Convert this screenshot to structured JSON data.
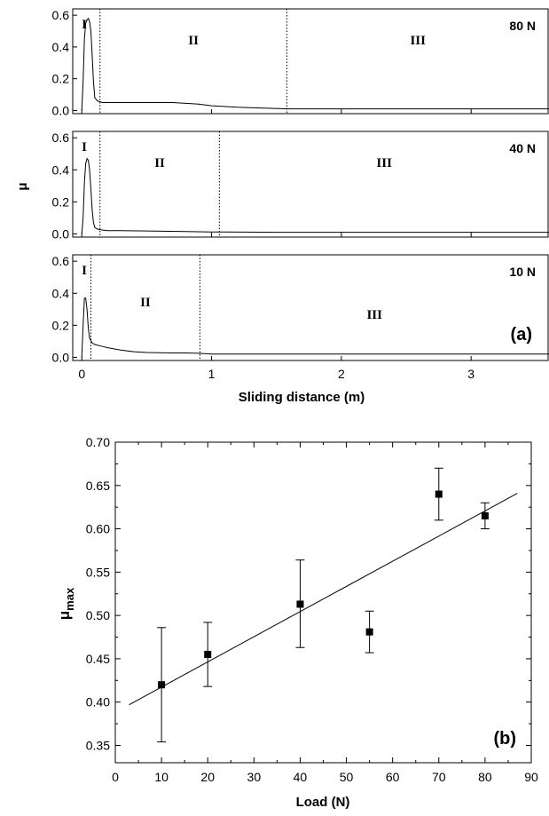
{
  "chart_data": [
    {
      "type": "line",
      "panel_label": "(a)",
      "xlabel": "Sliding distance (m)",
      "ylabel": "μ",
      "xlim": [
        -0.07,
        3.6
      ],
      "x_ticks": [
        "0",
        "1",
        "2",
        "3"
      ],
      "y_ticks": [
        "0.0",
        "0.2",
        "0.4",
        "0.6"
      ],
      "panels": [
        {
          "load": "80 N",
          "ylim": [
            -0.02,
            0.64
          ],
          "regions": [
            "I",
            "II",
            "III"
          ],
          "boundaries": [
            0.14,
            1.58
          ],
          "series": [
            {
              "x": [
                0.0,
                0.01,
                0.02,
                0.03,
                0.04,
                0.05,
                0.06,
                0.07,
                0.08,
                0.09,
                0.1,
                0.12,
                0.14,
                0.16,
                0.2,
                0.3,
                0.5,
                0.7,
                0.8,
                0.9,
                1.0,
                1.2,
                1.4,
                1.6,
                2.0,
                2.5,
                3.0,
                3.6
              ],
              "y": [
                0.0,
                0.18,
                0.45,
                0.55,
                0.57,
                0.58,
                0.56,
                0.5,
                0.35,
                0.18,
                0.08,
                0.06,
                0.055,
                0.05,
                0.05,
                0.05,
                0.05,
                0.05,
                0.045,
                0.04,
                0.03,
                0.02,
                0.015,
                0.01,
                0.01,
                0.01,
                0.01,
                0.01
              ]
            }
          ]
        },
        {
          "load": "40 N",
          "ylim": [
            -0.02,
            0.64
          ],
          "regions": [
            "I",
            "II",
            "III"
          ],
          "boundaries": [
            0.14,
            1.06
          ],
          "series": [
            {
              "x": [
                0.0,
                0.01,
                0.02,
                0.03,
                0.04,
                0.05,
                0.06,
                0.07,
                0.08,
                0.09,
                0.1,
                0.12,
                0.15,
                0.2,
                0.3,
                0.5,
                0.8,
                1.0,
                1.5,
                2.0,
                2.5,
                3.0,
                3.6
              ],
              "y": [
                0.0,
                0.1,
                0.32,
                0.44,
                0.47,
                0.46,
                0.4,
                0.28,
                0.15,
                0.07,
                0.04,
                0.03,
                0.025,
                0.02,
                0.02,
                0.018,
                0.015,
                0.012,
                0.01,
                0.01,
                0.01,
                0.01,
                0.01
              ]
            }
          ]
        },
        {
          "load": "10 N",
          "ylim": [
            -0.02,
            0.64
          ],
          "regions": [
            "I",
            "II",
            "III"
          ],
          "boundaries": [
            0.07,
            0.91
          ],
          "series": [
            {
              "x": [
                0.0,
                0.01,
                0.02,
                0.03,
                0.04,
                0.05,
                0.06,
                0.08,
                0.1,
                0.15,
                0.2,
                0.3,
                0.4,
                0.5,
                0.6,
                0.7,
                0.8,
                0.9,
                1.0,
                2.0,
                3.0,
                3.6
              ],
              "y": [
                0.0,
                0.2,
                0.37,
                0.37,
                0.3,
                0.18,
                0.12,
                0.09,
                0.08,
                0.07,
                0.06,
                0.045,
                0.035,
                0.03,
                0.028,
                0.027,
                0.027,
                0.025,
                0.02,
                0.02,
                0.02,
                0.02
              ]
            }
          ]
        }
      ]
    },
    {
      "type": "scatter",
      "panel_label": "(b)",
      "xlabel": "Load (N)",
      "ylabel": "μmax",
      "ylabel_main": "μ",
      "ylabel_sub": "max",
      "xlim": [
        0,
        90
      ],
      "ylim": [
        0.33,
        0.7
      ],
      "x_ticks": [
        "0",
        "10",
        "20",
        "30",
        "40",
        "50",
        "60",
        "70",
        "80",
        "90"
      ],
      "y_ticks": [
        "0.35",
        "0.40",
        "0.45",
        "0.50",
        "0.55",
        "0.60",
        "0.65",
        "0.70"
      ],
      "points": [
        {
          "x": 10,
          "y": 0.42,
          "err_low": 0.354,
          "err_high": 0.486
        },
        {
          "x": 20,
          "y": 0.455,
          "err_low": 0.418,
          "err_high": 0.492
        },
        {
          "x": 40,
          "y": 0.513,
          "err_low": 0.463,
          "err_high": 0.564
        },
        {
          "x": 55,
          "y": 0.481,
          "err_low": 0.457,
          "err_high": 0.505
        },
        {
          "x": 70,
          "y": 0.64,
          "err_low": 0.61,
          "err_high": 0.67
        },
        {
          "x": 80,
          "y": 0.615,
          "err_low": 0.6,
          "err_high": 0.63
        }
      ],
      "fit_line": {
        "x": [
          3,
          87
        ],
        "y": [
          0.397,
          0.641
        ]
      }
    }
  ]
}
